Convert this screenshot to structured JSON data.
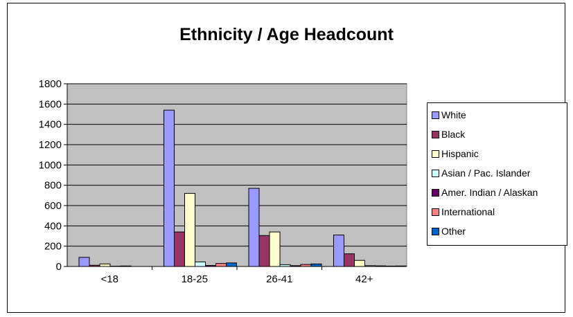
{
  "chart_data": {
    "type": "bar",
    "title": "Ethnicity / Age Headcount",
    "xlabel": "",
    "ylabel": "",
    "categories": [
      "<18",
      "18-25",
      "26-41",
      "42+"
    ],
    "ylim": [
      0,
      1800
    ],
    "yticks": [
      0,
      200,
      400,
      600,
      800,
      1000,
      1200,
      1400,
      1600,
      1800
    ],
    "grid": true,
    "legend_position": "right",
    "series": [
      {
        "name": "White",
        "color": "#9999FF",
        "values": [
          90,
          1540,
          770,
          310
        ]
      },
      {
        "name": "Black",
        "color": "#993366",
        "values": [
          12,
          340,
          305,
          125
        ]
      },
      {
        "name": "Hispanic",
        "color": "#FFFFCC",
        "values": [
          25,
          720,
          340,
          60
        ]
      },
      {
        "name": "Asian / Pac. Islander",
        "color": "#CCFFFF",
        "values": [
          3,
          45,
          18,
          8
        ]
      },
      {
        "name": "Amer. Indian / Alaskan",
        "color": "#660066",
        "values": [
          5,
          10,
          8,
          6
        ]
      },
      {
        "name": "International",
        "color": "#FF8080",
        "values": [
          0,
          30,
          20,
          4
        ]
      },
      {
        "name": "Other",
        "color": "#0066CC",
        "values": [
          0,
          35,
          25,
          5
        ]
      }
    ]
  }
}
